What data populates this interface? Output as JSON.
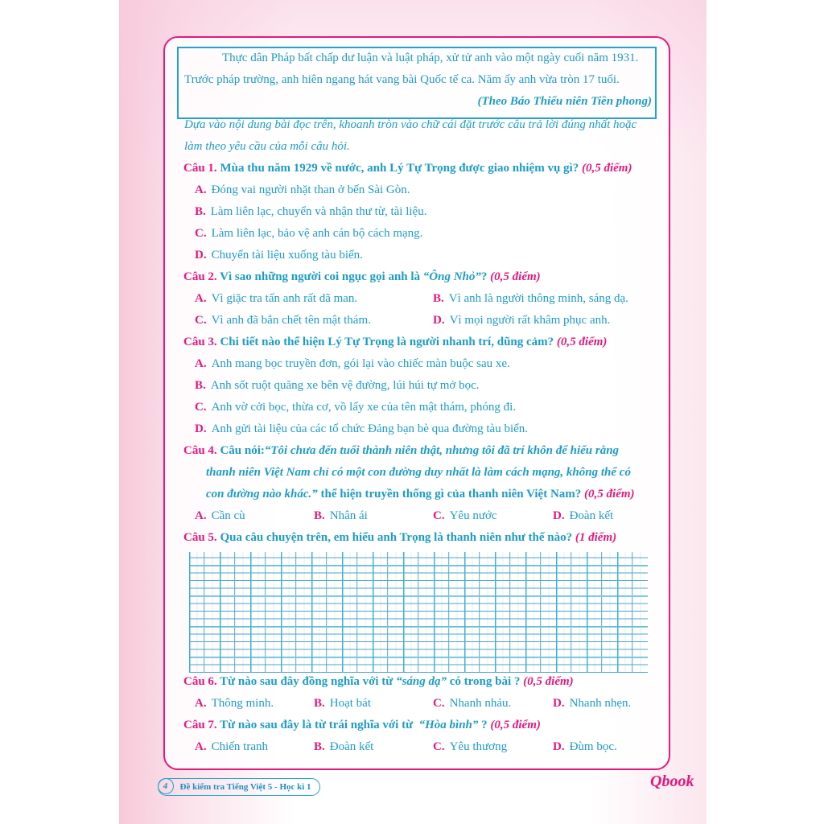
{
  "passage": {
    "line1": "Thực dân Pháp bất chấp dư luận và luật pháp, xử tử anh vào một ngày cuối năm 1931.",
    "line2": "Trước pháp trường, anh hiên ngang hát vang bài Quốc tế ca. Năm ấy anh vừa tròn 17 tuổi.",
    "source": "(Theo Báo Thiếu niên Tiền phong)"
  },
  "instruction": {
    "line1": "Dựa vào nội dung bài đọc trên, khoanh tròn vào chữ cái đặt trước câu trả lời đúng nhất hoặc",
    "line2": "làm theo yêu cầu của mỗi câu hỏi."
  },
  "q1": {
    "num": "Câu 1.",
    "text": "Mùa thu năm 1929 về nước, anh Lý Tự Trọng được giao nhiệm vụ gì?",
    "pts": "(0,5 điểm)",
    "options": [
      {
        "l": "A.",
        "t": "Đóng vai người nhặt than ở bến Sài Gòn."
      },
      {
        "l": "B.",
        "t": "Làm liên lạc, chuyển và nhận thư từ, tài liệu."
      },
      {
        "l": "C.",
        "t": "Làm liên lạc, bảo vệ anh cán bộ cách mạng."
      },
      {
        "l": "D.",
        "t": "Chuyển tài liệu xuống tàu biển."
      }
    ]
  },
  "q2": {
    "num": "Câu 2.",
    "text": "Vì sao những người coi ngục gọi anh là",
    "quote": "“Ông Nhỏ”",
    "tail": "?",
    "pts": "(0,5 điểm)",
    "options": [
      {
        "l": "A.",
        "t": "Vì giặc tra tấn anh rất dã man."
      },
      {
        "l": "B.",
        "t": "Vì anh là người thông minh, sáng dạ."
      },
      {
        "l": "C.",
        "t": "Vì anh đã bắn chết tên mật thám."
      },
      {
        "l": "D.",
        "t": "Vì mọi người rất khâm phục anh."
      }
    ]
  },
  "q3": {
    "num": "Câu 3.",
    "text": "Chi tiết nào thể hiện Lý Tự Trọng là người nhanh trí, dũng cảm?",
    "pts": "(0,5 điểm)",
    "options": [
      {
        "l": "A.",
        "t": "Anh mang bọc truyền đơn, gói lại vào chiếc màn buộc sau xe."
      },
      {
        "l": "B.",
        "t": "Anh sốt ruột quăng xe bên vệ đường, lúi húi tự mở bọc."
      },
      {
        "l": "C.",
        "t": "Anh vờ cởi bọc, thừa cơ, vồ lấy xe của tên mật thám, phóng đi."
      },
      {
        "l": "D.",
        "t": "Anh gửi tài liệu của các tổ chức Đảng bạn bè qua đường tàu biển."
      }
    ]
  },
  "q4": {
    "num": "Câu 4.",
    "lead": "Câu nói:",
    "quote1": "“Tôi chưa đến tuổi thành niên thật, nhưng tôi đã trí khôn để hiểu rằng",
    "quote2": "thanh niên Việt Nam chỉ có một con đường duy nhất là làm cách mạng, không thể có",
    "quote3": "con đường nào khác.”",
    "tail": "thể hiện truyền thống gì của thanh niên Việt Nam?",
    "pts": "(0,5 điểm)",
    "options": [
      {
        "l": "A.",
        "t": "Cần cù"
      },
      {
        "l": "B.",
        "t": "Nhân ái"
      },
      {
        "l": "C.",
        "t": "Yêu nước"
      },
      {
        "l": "D.",
        "t": "Đoàn kết"
      }
    ]
  },
  "q5": {
    "num": "Câu 5.",
    "text": "Qua câu chuyện trên, em hiểu anh Trọng là thanh niên như thế nào?",
    "pts": "(1 điểm)"
  },
  "q6": {
    "num": "Câu 6.",
    "text": "Từ nào sau đây đồng nghĩa với từ",
    "quote": "“sáng dạ”",
    "tail": "có trong bài ?",
    "pts": "(0,5 điểm)",
    "options": [
      {
        "l": "A.",
        "t": "Thông minh."
      },
      {
        "l": "B.",
        "t": "Hoạt bát"
      },
      {
        "l": "C.",
        "t": "Nhanh nhảu."
      },
      {
        "l": "D.",
        "t": "Nhanh nhẹn."
      }
    ]
  },
  "q7": {
    "num": "Câu 7.",
    "text": "Từ nào sau đây là từ trái nghĩa với từ",
    "quote": "“Hòa bình”",
    "tail": "?",
    "pts": "(0,5 điểm)",
    "options": [
      {
        "l": "A.",
        "t": "Chiến tranh"
      },
      {
        "l": "B.",
        "t": "Đoàn kết"
      },
      {
        "l": "C.",
        "t": "Yêu thương"
      },
      {
        "l": "D.",
        "t": "Đùm bọc."
      }
    ]
  },
  "footer": {
    "page": "4",
    "title": "Đề kiểm tra Tiếng Việt 5 - Học kì 1",
    "logo": "Qbook"
  }
}
